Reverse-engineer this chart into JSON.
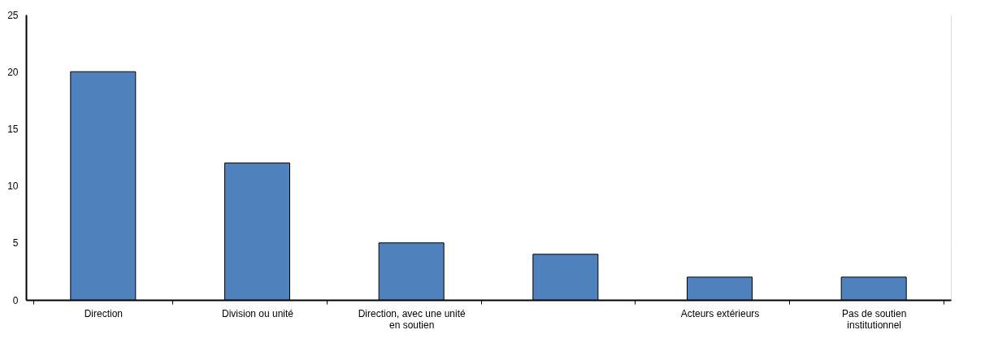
{
  "chart_data": {
    "type": "bar",
    "categories": [
      "Direction",
      "Division ou unité",
      "Direction, avec une unité en soutien",
      null,
      "Acteurs extérieurs",
      "Pas de soutien institutionnel"
    ],
    "values": [
      20,
      12,
      5,
      4,
      2,
      2
    ],
    "color": "#4f81bd",
    "ylim": [
      0,
      25
    ],
    "yticks": [
      0,
      5,
      10,
      15,
      20,
      25
    ],
    "grid": true
  }
}
